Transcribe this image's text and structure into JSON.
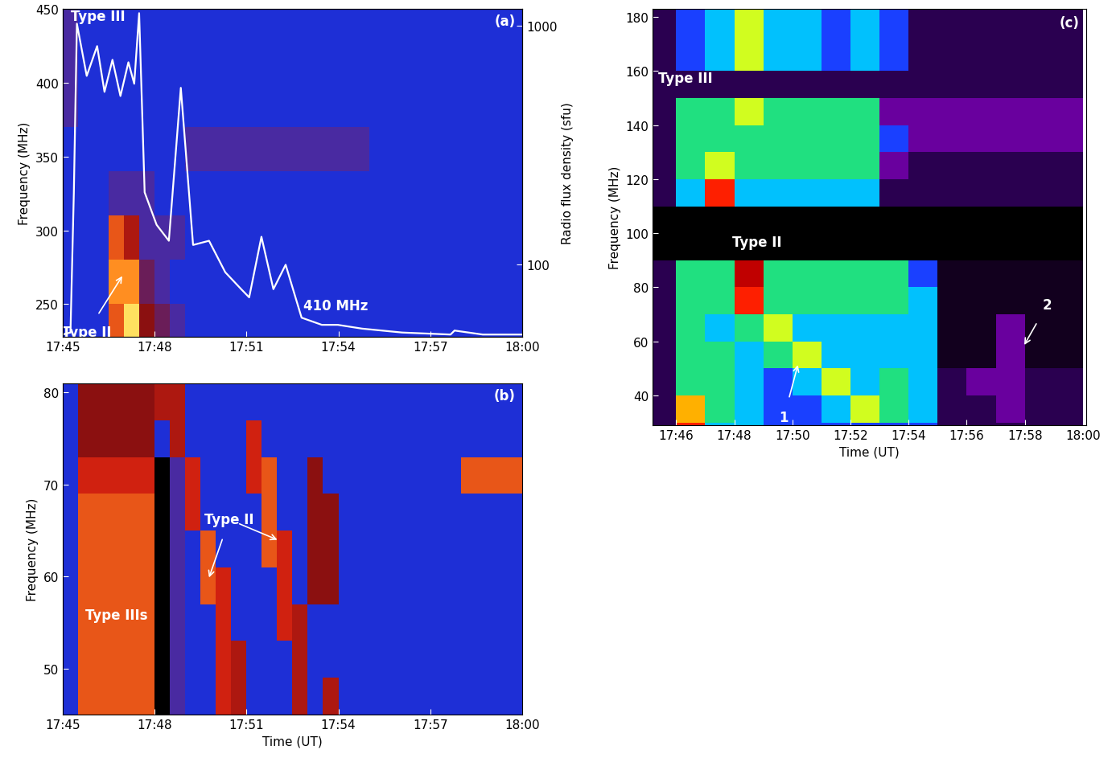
{
  "chart_data": [
    {
      "type": "heatmap",
      "title": "(a)",
      "ylabel": "Frequency (MHz)",
      "y2label": "Radio flux density (sfu)",
      "xlim": [
        45,
        60
      ],
      "xticks": [
        {
          "value": 45,
          "label": "17:45"
        },
        {
          "value": 48,
          "label": "17:48"
        },
        {
          "value": 51,
          "label": "17:51"
        },
        {
          "value": 54,
          "label": "17:54"
        },
        {
          "value": 57,
          "label": "17:57"
        },
        {
          "value": 60,
          "label": "18:00"
        }
      ],
      "ylim": [
        228,
        450
      ],
      "yticks": [
        250,
        300,
        350,
        400,
        450
      ],
      "y2lim": [
        50,
        1180
      ],
      "y2ticks": [
        100,
        1000
      ],
      "clim": [
        0,
        10
      ],
      "x_edges": [
        45,
        45.5,
        46,
        46.5,
        47,
        47.5,
        48,
        48.5,
        49,
        49.5,
        50,
        50.5,
        51,
        51.5,
        52,
        52.5,
        53,
        53.5,
        54,
        54.5,
        55,
        55.5,
        56,
        56.5,
        57,
        57.5,
        58,
        58.5,
        59,
        59.5,
        60
      ],
      "y_edges": [
        220,
        250,
        280,
        310,
        340,
        370,
        400,
        430,
        450
      ],
      "cells": [
        [
          2,
          2,
          2,
          8,
          10,
          5,
          4,
          3,
          2,
          2,
          2,
          2,
          2,
          2,
          2,
          2,
          2,
          2,
          2,
          2,
          2,
          2,
          2,
          2,
          2,
          2,
          2,
          2,
          2,
          2
        ],
        [
          2,
          2,
          2,
          9,
          9,
          4,
          3,
          2,
          2,
          2,
          2,
          2,
          2,
          2,
          2,
          2,
          2,
          2,
          2,
          2,
          2,
          2,
          2,
          2,
          2,
          2,
          2,
          2,
          2,
          2
        ],
        [
          2,
          2,
          2,
          8,
          6,
          3,
          3,
          3,
          2,
          2,
          2,
          2,
          2,
          2,
          2,
          2,
          2,
          2,
          2,
          2,
          2,
          2,
          2,
          2,
          2,
          2,
          2,
          2,
          2,
          2
        ],
        [
          2,
          2,
          2,
          3,
          3,
          3,
          2,
          2,
          2,
          2,
          2,
          2,
          2,
          2,
          2,
          2,
          2,
          2,
          2,
          2,
          2,
          2,
          2,
          2,
          2,
          2,
          2,
          2,
          2,
          2
        ],
        [
          2,
          2,
          2,
          2,
          2,
          2,
          2,
          2,
          3,
          3,
          3,
          3,
          3,
          3,
          3,
          3,
          3,
          3,
          3,
          3,
          2,
          2,
          2,
          2,
          2,
          2,
          2,
          2,
          2,
          2
        ],
        [
          3,
          2,
          2,
          2,
          2,
          2,
          2,
          2,
          2,
          2,
          2,
          2,
          2,
          2,
          2,
          2,
          2,
          2,
          2,
          2,
          2,
          2,
          2,
          2,
          2,
          2,
          2,
          2,
          2,
          2
        ],
        [
          3,
          2,
          2,
          2,
          2,
          2,
          2,
          2,
          2,
          2,
          2,
          2,
          2,
          2,
          2,
          2,
          2,
          2,
          2,
          2,
          2,
          2,
          2,
          2,
          2,
          2,
          2,
          2,
          2,
          2
        ],
        [
          3,
          2,
          2,
          2,
          2,
          2,
          2,
          2,
          2,
          2,
          2,
          2,
          2,
          2,
          2,
          2,
          2,
          2,
          2,
          2,
          2,
          2,
          2,
          2,
          2,
          2,
          2,
          2,
          2,
          2
        ]
      ],
      "series": [
        {
          "type": "line",
          "axis": "y2",
          "log": true,
          "color": "#ffffff",
          "x": [
            45.0,
            45.26,
            45.37,
            45.47,
            45.79,
            46.13,
            46.37,
            46.63,
            46.89,
            47.15,
            47.34,
            47.5,
            47.68,
            48.07,
            48.47,
            48.86,
            49.26,
            49.78,
            50.31,
            50.83,
            51.09,
            51.49,
            51.88,
            52.28,
            52.8,
            53.46,
            53.98,
            54.77,
            56.08,
            57.66,
            57.79,
            58.71,
            60.0
          ],
          "values": [
            51,
            52,
            200,
            1023,
            618,
            824,
            530,
            722,
            509,
            705,
            573,
            1132,
            201,
            147,
            126,
            551,
            121,
            126,
            93,
            79,
            73,
            131,
            79,
            100,
            60,
            56,
            56,
            54,
            52,
            51,
            53,
            51,
            51
          ]
        }
      ],
      "annotations": [
        {
          "text": "Type III",
          "x": 46.16,
          "y": 445
        },
        {
          "text": "Type II",
          "x": 45.8,
          "y": 231,
          "arrows_to": [
            [
              46.95,
              269
            ]
          ]
        },
        {
          "text": "410 MHz",
          "x": 53.9,
          "y": 249
        }
      ]
    },
    {
      "type": "heatmap",
      "title": "(b)",
      "xlabel": "Time (UT)",
      "ylabel": "Frequency (MHz)",
      "xlim": [
        45,
        60
      ],
      "xticks": [
        {
          "value": 45,
          "label": "17:45"
        },
        {
          "value": 48,
          "label": "17:48"
        },
        {
          "value": 51,
          "label": "17:51"
        },
        {
          "value": 54,
          "label": "17:54"
        },
        {
          "value": 57,
          "label": "17:57"
        },
        {
          "value": 60,
          "label": "18:00"
        }
      ],
      "ylim": [
        45,
        81
      ],
      "yticks": [
        50,
        60,
        70,
        80
      ],
      "clim": [
        0,
        10
      ],
      "x_edges": [
        45,
        45.5,
        46,
        46.5,
        47,
        47.5,
        48,
        48.5,
        49,
        49.5,
        50,
        50.5,
        51,
        51.5,
        52,
        52.5,
        53,
        53.5,
        54,
        54.5,
        55,
        55.5,
        56,
        56.5,
        57,
        57.5,
        58,
        58.5,
        59,
        59.5,
        60
      ],
      "y_edges": [
        45,
        49,
        53,
        57,
        61,
        65,
        69,
        73,
        77,
        81
      ],
      "cells": [
        [
          2,
          8,
          8,
          8,
          8,
          8,
          0,
          3,
          2,
          2,
          7,
          6,
          2,
          2,
          2,
          6,
          2,
          6,
          2,
          2,
          2,
          2,
          2,
          2,
          2,
          2,
          2,
          2,
          2,
          2
        ],
        [
          2,
          8,
          8,
          8,
          8,
          8,
          0,
          3,
          2,
          2,
          7,
          6,
          2,
          2,
          2,
          6,
          2,
          2,
          2,
          2,
          2,
          2,
          2,
          2,
          2,
          2,
          2,
          2,
          2,
          2
        ],
        [
          2,
          8,
          8,
          8,
          8,
          8,
          0,
          3,
          2,
          2,
          7,
          2,
          2,
          2,
          7,
          6,
          2,
          2,
          2,
          2,
          2,
          2,
          2,
          2,
          2,
          2,
          2,
          2,
          2,
          2
        ],
        [
          2,
          8,
          8,
          8,
          8,
          8,
          0,
          3,
          2,
          8,
          7,
          2,
          2,
          2,
          7,
          2,
          5,
          5,
          2,
          2,
          2,
          2,
          2,
          2,
          2,
          2,
          2,
          2,
          2,
          2
        ],
        [
          2,
          8,
          8,
          8,
          8,
          8,
          0,
          3,
          2,
          8,
          2,
          2,
          2,
          8,
          7,
          2,
          5,
          5,
          2,
          2,
          2,
          2,
          2,
          2,
          2,
          2,
          2,
          2,
          2,
          2
        ],
        [
          2,
          8,
          8,
          8,
          8,
          8,
          0,
          3,
          7,
          2,
          2,
          2,
          2,
          8,
          2,
          2,
          5,
          5,
          2,
          2,
          2,
          2,
          2,
          2,
          2,
          2,
          2,
          2,
          2,
          2
        ],
        [
          2,
          7,
          7,
          7,
          7,
          7,
          0,
          3,
          7,
          2,
          2,
          2,
          7,
          8,
          2,
          2,
          5,
          2,
          2,
          2,
          2,
          2,
          2,
          2,
          2,
          2,
          8,
          8,
          8,
          8
        ],
        [
          2,
          5,
          5,
          5,
          5,
          5,
          2,
          6,
          2,
          2,
          2,
          2,
          7,
          2,
          2,
          2,
          2,
          2,
          2,
          2,
          2,
          2,
          2,
          2,
          2,
          2,
          2,
          2,
          2,
          2
        ],
        [
          2,
          5,
          5,
          5,
          5,
          5,
          6,
          6,
          2,
          2,
          2,
          2,
          2,
          2,
          2,
          2,
          2,
          2,
          2,
          2,
          2,
          2,
          2,
          2,
          2,
          2,
          2,
          2,
          2,
          2
        ]
      ],
      "annotations": [
        {
          "text": "Type II",
          "x": 50.44,
          "y": 66.2,
          "arrows_to": [
            [
              49.78,
              59.9
            ],
            [
              52.01,
              64.0
            ]
          ]
        },
        {
          "text": "Type IIIs",
          "x": 46.76,
          "y": 55.8
        }
      ]
    },
    {
      "type": "heatmap",
      "title": "(c)",
      "xlabel": "Time (UT)",
      "ylabel": "Frequency (MHz)",
      "xlim": [
        45.2,
        60.1
      ],
      "xticks": [
        {
          "value": 46,
          "label": "17:46"
        },
        {
          "value": 48,
          "label": "17:48"
        },
        {
          "value": 50,
          "label": "17:50"
        },
        {
          "value": 52,
          "label": "17:52"
        },
        {
          "value": 54,
          "label": "17:54"
        },
        {
          "value": 56,
          "label": "17:56"
        },
        {
          "value": 58,
          "label": "17:58"
        },
        {
          "value": 60,
          "label": "18:00"
        }
      ],
      "ylim": [
        29,
        183
      ],
      "yticks": [
        40,
        60,
        80,
        100,
        120,
        140,
        160,
        180
      ],
      "clim": [
        0,
        10
      ],
      "x_edges": [
        45,
        46,
        47,
        48,
        49,
        50,
        51,
        52,
        53,
        54,
        55,
        56,
        57,
        58,
        59,
        60
      ],
      "y_edges": [
        25,
        30,
        40,
        50,
        60,
        70,
        80,
        90,
        100,
        110,
        120,
        130,
        140,
        150,
        160,
        170,
        185
      ],
      "cells": [
        [
          2,
          9,
          5,
          5,
          4,
          4,
          4,
          4,
          4,
          4,
          2,
          2,
          2,
          2,
          2
        ],
        [
          2,
          8,
          6,
          5,
          4,
          4,
          5,
          7,
          6,
          5,
          2,
          2,
          3,
          2,
          2
        ],
        [
          2,
          6,
          6,
          5,
          4,
          5,
          7,
          5,
          6,
          5,
          2,
          3,
          3,
          2,
          2
        ],
        [
          2,
          6,
          6,
          5,
          6,
          7,
          5,
          5,
          5,
          5,
          1,
          1,
          3,
          1,
          1
        ],
        [
          2,
          6,
          5,
          6,
          7,
          5,
          5,
          5,
          5,
          5,
          1,
          1,
          3,
          1,
          1
        ],
        [
          2,
          6,
          6,
          9,
          6,
          6,
          6,
          6,
          6,
          5,
          1,
          1,
          1,
          1,
          1
        ],
        [
          2,
          6,
          6,
          10,
          6,
          6,
          6,
          6,
          6,
          4,
          1,
          1,
          1,
          1,
          1
        ],
        [
          0,
          0,
          0,
          0,
          0,
          0,
          0,
          0,
          0,
          0,
          0,
          0,
          0,
          0,
          0
        ],
        [
          0,
          0,
          0,
          0,
          0,
          0,
          0,
          0,
          0,
          0,
          0,
          0,
          0,
          0,
          0
        ],
        [
          2,
          5,
          9,
          5,
          5,
          5,
          5,
          5,
          2,
          2,
          2,
          2,
          2,
          2,
          2
        ],
        [
          2,
          6,
          7,
          6,
          6,
          6,
          6,
          6,
          3,
          2,
          2,
          2,
          2,
          2,
          2
        ],
        [
          2,
          6,
          6,
          6,
          6,
          6,
          6,
          6,
          4,
          3,
          3,
          3,
          3,
          3,
          3
        ],
        [
          2,
          6,
          6,
          7,
          6,
          6,
          6,
          6,
          3,
          3,
          3,
          3,
          3,
          3,
          3
        ],
        [
          2,
          2,
          2,
          2,
          2,
          2,
          2,
          2,
          2,
          2,
          2,
          2,
          2,
          2,
          2
        ],
        [
          2,
          4,
          5,
          7,
          5,
          5,
          4,
          5,
          4,
          2,
          2,
          2,
          2,
          2,
          2
        ],
        [
          2,
          4,
          5,
          7,
          5,
          5,
          4,
          5,
          4,
          2,
          2,
          2,
          2,
          2,
          2
        ]
      ],
      "annotations": [
        {
          "text": "Type III",
          "x": 46.33,
          "y": 157.4
        },
        {
          "text": "Type II",
          "x": 48.78,
          "y": 96.8
        },
        {
          "text": "1",
          "x": 49.71,
          "y": 32.0,
          "arrows_to": [
            [
              50.19,
              51.3
            ]
          ]
        },
        {
          "text": "2",
          "x": 58.77,
          "y": 73.6,
          "arrows_to": [
            [
              57.98,
              58.7
            ]
          ]
        }
      ]
    }
  ]
}
